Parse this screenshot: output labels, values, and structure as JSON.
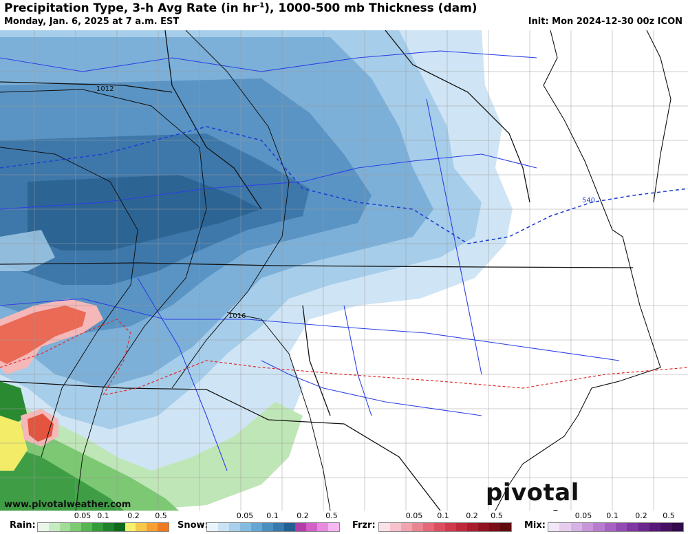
{
  "header": {
    "title": "Precipitation Type, 3-h Avg Rate (in hr",
    "title_sup": "-1",
    "title_tail": "), 1000-500 mb Thickness (dam)",
    "valid": "Monday, Jan. 6, 2025 at 7 a.m. EST",
    "init": "Init: Mon 2024-12-30 00z ICON"
  },
  "map": {
    "isobar_labels": [
      "1012",
      "1016"
    ],
    "thickness_label": "540"
  },
  "footer": {
    "url": "www.pivotalweather.com",
    "brand": "pivotal weather"
  },
  "legend": [
    {
      "title": "Rain:",
      "ticks": [
        "0.05",
        "0.1",
        "0.2",
        "0.5"
      ],
      "colors": [
        "#eaf6e6",
        "#c7ebc0",
        "#a3dc98",
        "#7ccb72",
        "#55b550",
        "#339c3a",
        "#1f822a",
        "#0d6a1c",
        "#f5f06e",
        "#f5c84a",
        "#f5a030",
        "#ef7a24"
      ]
    },
    {
      "title": "Snow:",
      "ticks": [
        "0.05",
        "0.1",
        "0.2",
        "0.5"
      ],
      "colors": [
        "#eaf4fb",
        "#c9e3f4",
        "#a7d0ec",
        "#84bbe0",
        "#65a6d2",
        "#4b8fc0",
        "#3679ad",
        "#245f93",
        "#b33ea8",
        "#d260c8",
        "#e88ae0",
        "#f5b8f0"
      ]
    },
    {
      "title": "Frzr:",
      "ticks": [
        "0.05",
        "0.1",
        "0.2",
        "0.5"
      ],
      "colors": [
        "#fbe2e6",
        "#f6c3cb",
        "#f0a4b0",
        "#ea8592",
        "#e46878",
        "#dc4e60",
        "#cf3a4c",
        "#bf2a3a",
        "#a81e2c",
        "#901520",
        "#780f18",
        "#600a10"
      ]
    },
    {
      "title": "Mix:",
      "ticks": [
        "0.05",
        "0.1",
        "0.2",
        "0.5"
      ],
      "colors": [
        "#f3e6f6",
        "#e6cdee",
        "#d7b2e4",
        "#c897da",
        "#b87ccf",
        "#a763c3",
        "#934cb4",
        "#7f38a2",
        "#6b278e",
        "#581a78",
        "#451062",
        "#330a4c"
      ]
    }
  ]
}
